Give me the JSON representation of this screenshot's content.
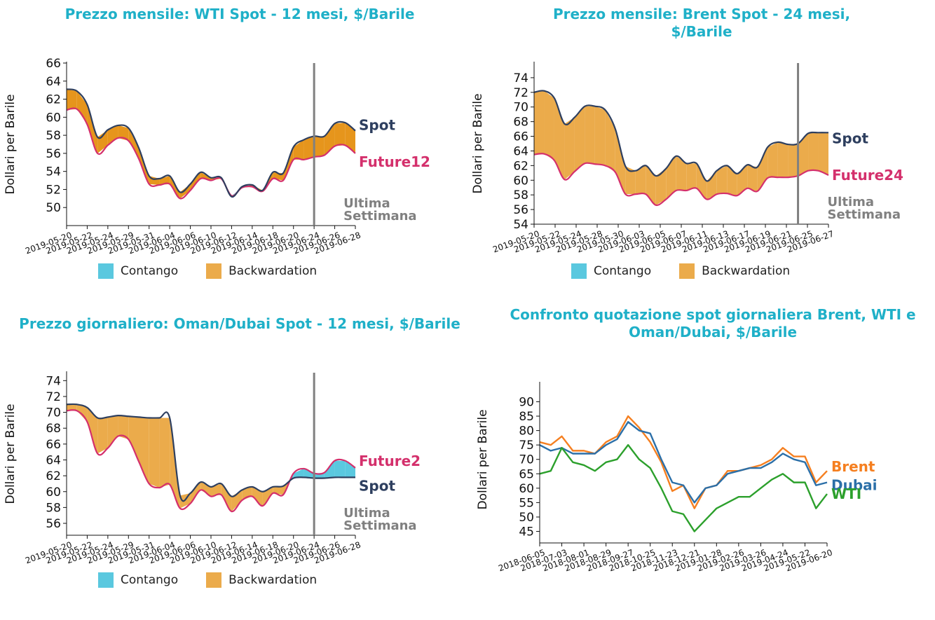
{
  "chart_data": [
    {
      "type": "area",
      "title": "Prezzo mensile: WTI Spot - 12 mesi, $/Barile",
      "ylabel": "Dollari per Barile",
      "ylim": [
        48,
        66
      ],
      "yticks": [
        50,
        52,
        54,
        56,
        58,
        60,
        62,
        64,
        66
      ],
      "x_tick_labels": [
        "2019-05-20",
        "2019-05-22",
        "2019-05-24",
        "2019-05-29",
        "2019-05-31",
        "2019-06-04",
        "2019-06-06",
        "2019-06-10",
        "2019-06-12",
        "2019-06-14",
        "2019-06-18",
        "2019-06-20",
        "2019-06-24",
        "2019-06-26",
        "2019-06-28"
      ],
      "x": [
        "2019-05-20",
        "2019-05-21",
        "2019-05-22",
        "2019-05-23",
        "2019-05-24",
        "2019-05-28",
        "2019-05-29",
        "2019-05-30",
        "2019-05-31",
        "2019-06-03",
        "2019-06-04",
        "2019-06-05",
        "2019-06-06",
        "2019-06-07",
        "2019-06-10",
        "2019-06-11",
        "2019-06-12",
        "2019-06-13",
        "2019-06-14",
        "2019-06-17",
        "2019-06-18",
        "2019-06-19",
        "2019-06-20",
        "2019-06-21",
        "2019-06-24",
        "2019-06-25",
        "2019-06-26",
        "2019-06-27",
        "2019-06-28"
      ],
      "series": [
        {
          "name": "Spot",
          "color": "#2e3f5f",
          "values": [
            63.1,
            62.9,
            61.4,
            57.8,
            58.6,
            59.1,
            58.8,
            56.6,
            53.5,
            53.2,
            53.5,
            51.7,
            52.6,
            53.9,
            53.3,
            53.3,
            51.2,
            52.3,
            52.5,
            51.9,
            53.9,
            53.8,
            56.7,
            57.5,
            57.9,
            57.9,
            59.3,
            59.4,
            58.5
          ]
        },
        {
          "name": "Future12",
          "color": "#d4306c",
          "values": [
            60.8,
            60.9,
            59.2,
            56.0,
            56.9,
            57.7,
            57.4,
            55.4,
            52.6,
            52.5,
            52.6,
            51.0,
            51.9,
            53.2,
            53.0,
            53.2,
            51.3,
            52.2,
            52.3,
            51.8,
            53.2,
            53.0,
            55.3,
            55.3,
            55.6,
            55.8,
            56.8,
            56.9,
            56.0
          ]
        }
      ],
      "marker": "2019-06-24",
      "marker_label": "Ultima\nSettimana",
      "legend": [
        "Contango",
        "Backwardation"
      ]
    },
    {
      "type": "area",
      "title": "Prezzo mensile: Brent Spot - 24 mesi, $/Barile",
      "ylabel": "Dollari per Barile",
      "ylim": [
        54,
        76
      ],
      "yticks": [
        54,
        56,
        58,
        60,
        62,
        64,
        66,
        68,
        70,
        72,
        74
      ],
      "x_tick_labels": [
        "2019-05-20",
        "2019-05-22",
        "2019-05-24",
        "2019-05-28",
        "2019-05-30",
        "2019-06-03",
        "2019-06-05",
        "2019-06-07",
        "2019-06-11",
        "2019-06-13",
        "2019-06-17",
        "2019-06-19",
        "2019-06-21",
        "2019-06-25",
        "2019-06-27"
      ],
      "x": [
        "2019-05-20",
        "2019-05-21",
        "2019-05-22",
        "2019-05-23",
        "2019-05-24",
        "2019-05-27",
        "2019-05-28",
        "2019-05-29",
        "2019-05-30",
        "2019-05-31",
        "2019-06-03",
        "2019-06-04",
        "2019-06-05",
        "2019-06-06",
        "2019-06-07",
        "2019-06-10",
        "2019-06-11",
        "2019-06-12",
        "2019-06-13",
        "2019-06-14",
        "2019-06-17",
        "2019-06-18",
        "2019-06-19",
        "2019-06-20",
        "2019-06-21",
        "2019-06-24",
        "2019-06-25",
        "2019-06-26",
        "2019-06-27",
        "2019-06-28"
      ],
      "series": [
        {
          "name": "Spot",
          "color": "#2e3f5f",
          "values": [
            72.0,
            72.2,
            71.2,
            67.7,
            68.6,
            70.1,
            70.1,
            69.6,
            67.0,
            61.9,
            61.3,
            62.0,
            60.6,
            61.6,
            63.3,
            62.3,
            62.3,
            59.9,
            61.3,
            62.0,
            60.9,
            62.1,
            61.8,
            64.5,
            65.2,
            64.9,
            65.0,
            66.4,
            66.5,
            66.5
          ]
        },
        {
          "name": "Future24",
          "color": "#d4306c",
          "values": [
            63.5,
            63.6,
            62.7,
            60.1,
            61.2,
            62.3,
            62.2,
            62.0,
            61.1,
            58.1,
            58.1,
            58.1,
            56.6,
            57.4,
            58.6,
            58.6,
            58.9,
            57.4,
            58.1,
            58.2,
            57.9,
            58.9,
            58.5,
            60.3,
            60.4,
            60.4,
            60.6,
            61.3,
            61.3,
            60.7
          ]
        }
      ],
      "marker": "2019-06-25",
      "marker_label": "Ultima\nSettimana",
      "legend": [
        "Contango",
        "Backwardation"
      ]
    },
    {
      "type": "area",
      "title": "Prezzo giornaliero: Oman/Dubai Spot - 12 mesi, $/Barile",
      "ylabel": "Dollari per Barile",
      "ylim": [
        54.5,
        75
      ],
      "yticks": [
        56,
        58,
        60,
        62,
        64,
        66,
        68,
        70,
        72,
        74
      ],
      "x_tick_labels": [
        "2019-05-20",
        "2019-05-22",
        "2019-05-24",
        "2019-05-29",
        "2019-05-31",
        "2019-06-04",
        "2019-06-06",
        "2019-06-10",
        "2019-06-12",
        "2019-06-14",
        "2019-06-18",
        "2019-06-20",
        "2019-06-24",
        "2019-06-26",
        "2019-06-28"
      ],
      "x": [
        "2019-05-20",
        "2019-05-21",
        "2019-05-22",
        "2019-05-23",
        "2019-05-24",
        "2019-05-28",
        "2019-05-29",
        "2019-05-30",
        "2019-05-31",
        "2019-06-03",
        "2019-06-04",
        "2019-06-05",
        "2019-06-06",
        "2019-06-07",
        "2019-06-10",
        "2019-06-11",
        "2019-06-12",
        "2019-06-13",
        "2019-06-14",
        "2019-06-17",
        "2019-06-18",
        "2019-06-19",
        "2019-06-20",
        "2019-06-21",
        "2019-06-24",
        "2019-06-25",
        "2019-06-26",
        "2019-06-27",
        "2019-06-28"
      ],
      "series": [
        {
          "name": "Spot",
          "color": "#2e3f5f",
          "values": [
            71.0,
            71.0,
            70.6,
            69.3,
            69.4,
            69.6,
            69.5,
            69.4,
            69.3,
            69.3,
            69.3,
            59.5,
            59.8,
            61.2,
            60.6,
            61.0,
            59.4,
            60.2,
            60.6,
            60.0,
            60.6,
            60.7,
            61.7,
            61.8,
            61.7,
            61.7,
            61.8,
            61.8,
            61.8
          ]
        },
        {
          "name": "Future2",
          "color": "#d4306c",
          "values": [
            70.2,
            70.2,
            68.8,
            64.8,
            65.5,
            67.0,
            66.6,
            63.8,
            61.0,
            60.5,
            60.9,
            57.9,
            58.5,
            60.2,
            59.4,
            59.6,
            57.5,
            58.9,
            59.4,
            58.2,
            59.8,
            59.6,
            62.3,
            62.9,
            62.3,
            62.4,
            63.9,
            63.9,
            63.0
          ]
        }
      ],
      "marker": "2019-06-24",
      "marker_label": "Ultima\nSettimana",
      "legend": [
        "Contango",
        "Backwardation"
      ]
    },
    {
      "type": "line",
      "title": "Confronto quotazione spot giornaliera Brent, WTI e\nOman/Dubai, $/Barile",
      "ylabel": "Dollari per Barile",
      "ylim": [
        41,
        94
      ],
      "yticks": [
        45,
        50,
        55,
        60,
        65,
        70,
        75,
        80,
        85,
        90
      ],
      "x_tick_labels": [
        "2018-06-05",
        "2018-07-03",
        "2018-08-01",
        "2018-08-29",
        "2018-09-27",
        "2018-10-25",
        "2018-11-23",
        "2018-12-21",
        "2019-01-28",
        "2019-02-26",
        "2019-03-26",
        "2019-04-24",
        "2019-05-22",
        "2019-06-20"
      ],
      "x": [
        "2018-06-05",
        "2018-06-19",
        "2018-07-03",
        "2018-07-17",
        "2018-08-01",
        "2018-08-15",
        "2018-08-29",
        "2018-09-12",
        "2018-09-27",
        "2018-10-11",
        "2018-10-25",
        "2018-11-09",
        "2018-11-23",
        "2018-12-07",
        "2018-12-21",
        "2019-01-07",
        "2019-01-28",
        "2019-02-12",
        "2019-02-26",
        "2019-03-12",
        "2019-03-26",
        "2019-04-09",
        "2019-04-24",
        "2019-05-08",
        "2019-05-22",
        "2019-06-05",
        "2019-06-20"
      ],
      "series": [
        {
          "name": "Brent",
          "color": "#f57f20",
          "values": [
            76,
            75,
            78,
            73,
            73,
            72,
            76,
            78,
            85,
            81,
            76,
            69,
            59,
            61,
            53,
            60,
            61,
            66,
            66,
            67,
            68,
            70,
            74,
            71,
            71,
            62,
            66
          ]
        },
        {
          "name": "Dubai",
          "color": "#2b6fa8",
          "values": [
            75,
            73,
            74,
            72,
            72,
            72,
            75,
            77,
            83,
            80,
            79,
            70,
            62,
            61,
            55,
            60,
            61,
            65,
            66,
            67,
            67,
            69,
            72,
            70,
            69,
            61,
            62
          ]
        },
        {
          "name": "WTI",
          "color": "#2ca02c",
          "values": [
            65,
            66,
            74,
            69,
            68,
            66,
            69,
            70,
            75,
            70,
            67,
            60,
            52,
            51,
            45,
            49,
            53,
            55,
            57,
            57,
            60,
            63,
            65,
            62,
            62,
            53,
            58
          ]
        }
      ]
    }
  ]
}
